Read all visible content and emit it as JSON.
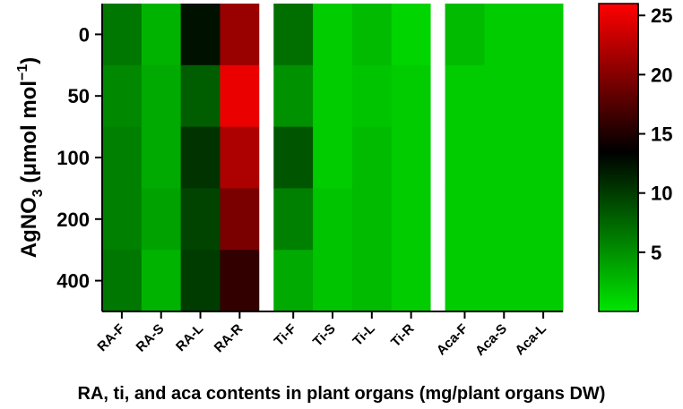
{
  "chart_data": {
    "type": "heatmap",
    "title": "",
    "xlabel": "RA, ti, and aca contents in plant organs (mg/plant organs DW)",
    "ylabel_main": "AgNO",
    "ylabel_sub": "3",
    "ylabel_unit": " (μmol mol",
    "ylabel_sup": "−1",
    "ylabel_close": ")",
    "rows": [
      "0",
      "50",
      "100",
      "200",
      "400"
    ],
    "columns": [
      "RA-F",
      "RA-S",
      "RA-L",
      "RA-R",
      "",
      "Ti-F",
      "Ti-S",
      "Ti-L",
      "Ti-R",
      "",
      "Aca-F",
      "Aca-S",
      "Aca-L"
    ],
    "column_labels": [
      "RA-F",
      "RA-S",
      "RA-L",
      "RA-R",
      "Ti-F",
      "Ti-S",
      "Ti-L",
      "Ti-R",
      "Aca-F",
      "Aca-S",
      "Aca-L"
    ],
    "values": [
      [
        6.5,
        3.0,
        12.5,
        21.0,
        null,
        7.0,
        1.5,
        2.5,
        1.0,
        null,
        2.5,
        1.5,
        1.5
      ],
      [
        5.5,
        3.5,
        8.0,
        25.0,
        null,
        5.0,
        1.5,
        2.0,
        1.5,
        null,
        1.5,
        1.5,
        1.5
      ],
      [
        6.0,
        3.5,
        10.5,
        22.0,
        null,
        8.5,
        1.5,
        2.5,
        1.5,
        null,
        1.5,
        1.5,
        1.5
      ],
      [
        6.0,
        4.0,
        9.5,
        19.5,
        null,
        6.0,
        2.0,
        2.5,
        1.5,
        null,
        1.5,
        1.5,
        1.5
      ],
      [
        6.5,
        3.0,
        10.0,
        16.0,
        null,
        3.5,
        2.0,
        2.5,
        1.5,
        null,
        1.5,
        1.5,
        1.5
      ]
    ],
    "colorbar_ticks": [
      "5",
      "10",
      "15",
      "20",
      "25"
    ],
    "colorbar_tick_values": [
      5,
      10,
      15,
      20,
      25
    ],
    "colorbar_range": [
      0,
      26
    ],
    "colorscale": [
      {
        "value": 0,
        "color": "#00e600"
      },
      {
        "value": 13.5,
        "color": "#000000"
      },
      {
        "value": 26,
        "color": "#ff0000"
      }
    ],
    "gap_color": "#ffffff",
    "grid": false,
    "legend": "colorbar-right"
  }
}
